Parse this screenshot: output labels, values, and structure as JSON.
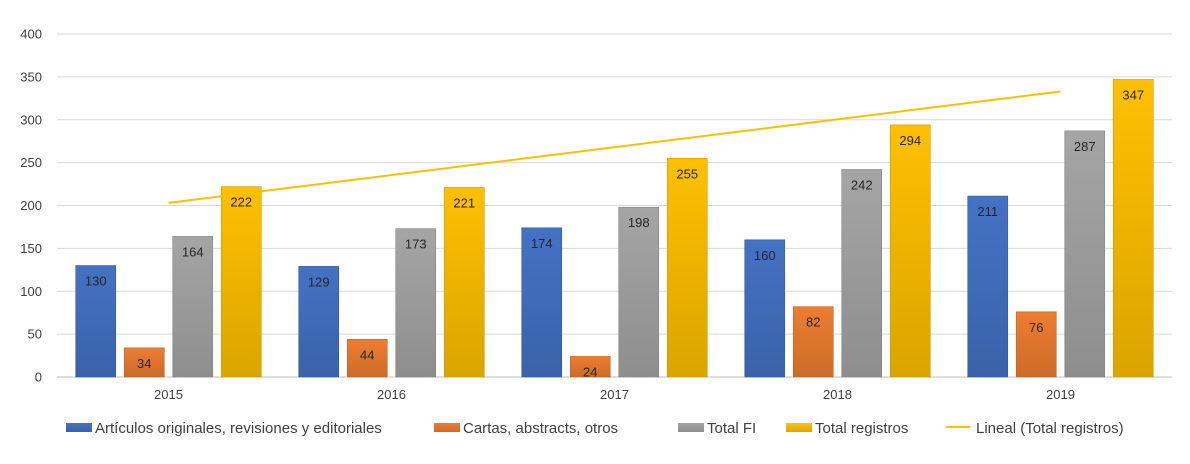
{
  "chart_data": {
    "type": "bar",
    "categories": [
      "2015",
      "2016",
      "2017",
      "2018",
      "2019"
    ],
    "series": [
      {
        "name": "Artículos originales, revisiones y editoriales",
        "values": [
          130,
          129,
          174,
          160,
          211
        ],
        "color": "#4472C4"
      },
      {
        "name": "Cartas, abstracts, otros",
        "values": [
          34,
          44,
          24,
          82,
          76
        ],
        "color": "#ED7D31"
      },
      {
        "name": "Total FI",
        "values": [
          164,
          173,
          198,
          242,
          287
        ],
        "color": "#A5A5A5"
      },
      {
        "name": "Total registros",
        "values": [
          222,
          221,
          255,
          294,
          347
        ],
        "color": "#FFC000"
      }
    ],
    "trendline": {
      "name": "Lineal (Total registros)",
      "type": "linear",
      "start": 203,
      "end": 333,
      "color": "#FFC000"
    },
    "yticks": [
      "0",
      "50",
      "100",
      "150",
      "200",
      "250",
      "300",
      "350",
      "400"
    ],
    "ylim": [
      0,
      400
    ],
    "grid": true,
    "legend_position": "bottom",
    "title": "",
    "xlabel": "",
    "ylabel": ""
  }
}
